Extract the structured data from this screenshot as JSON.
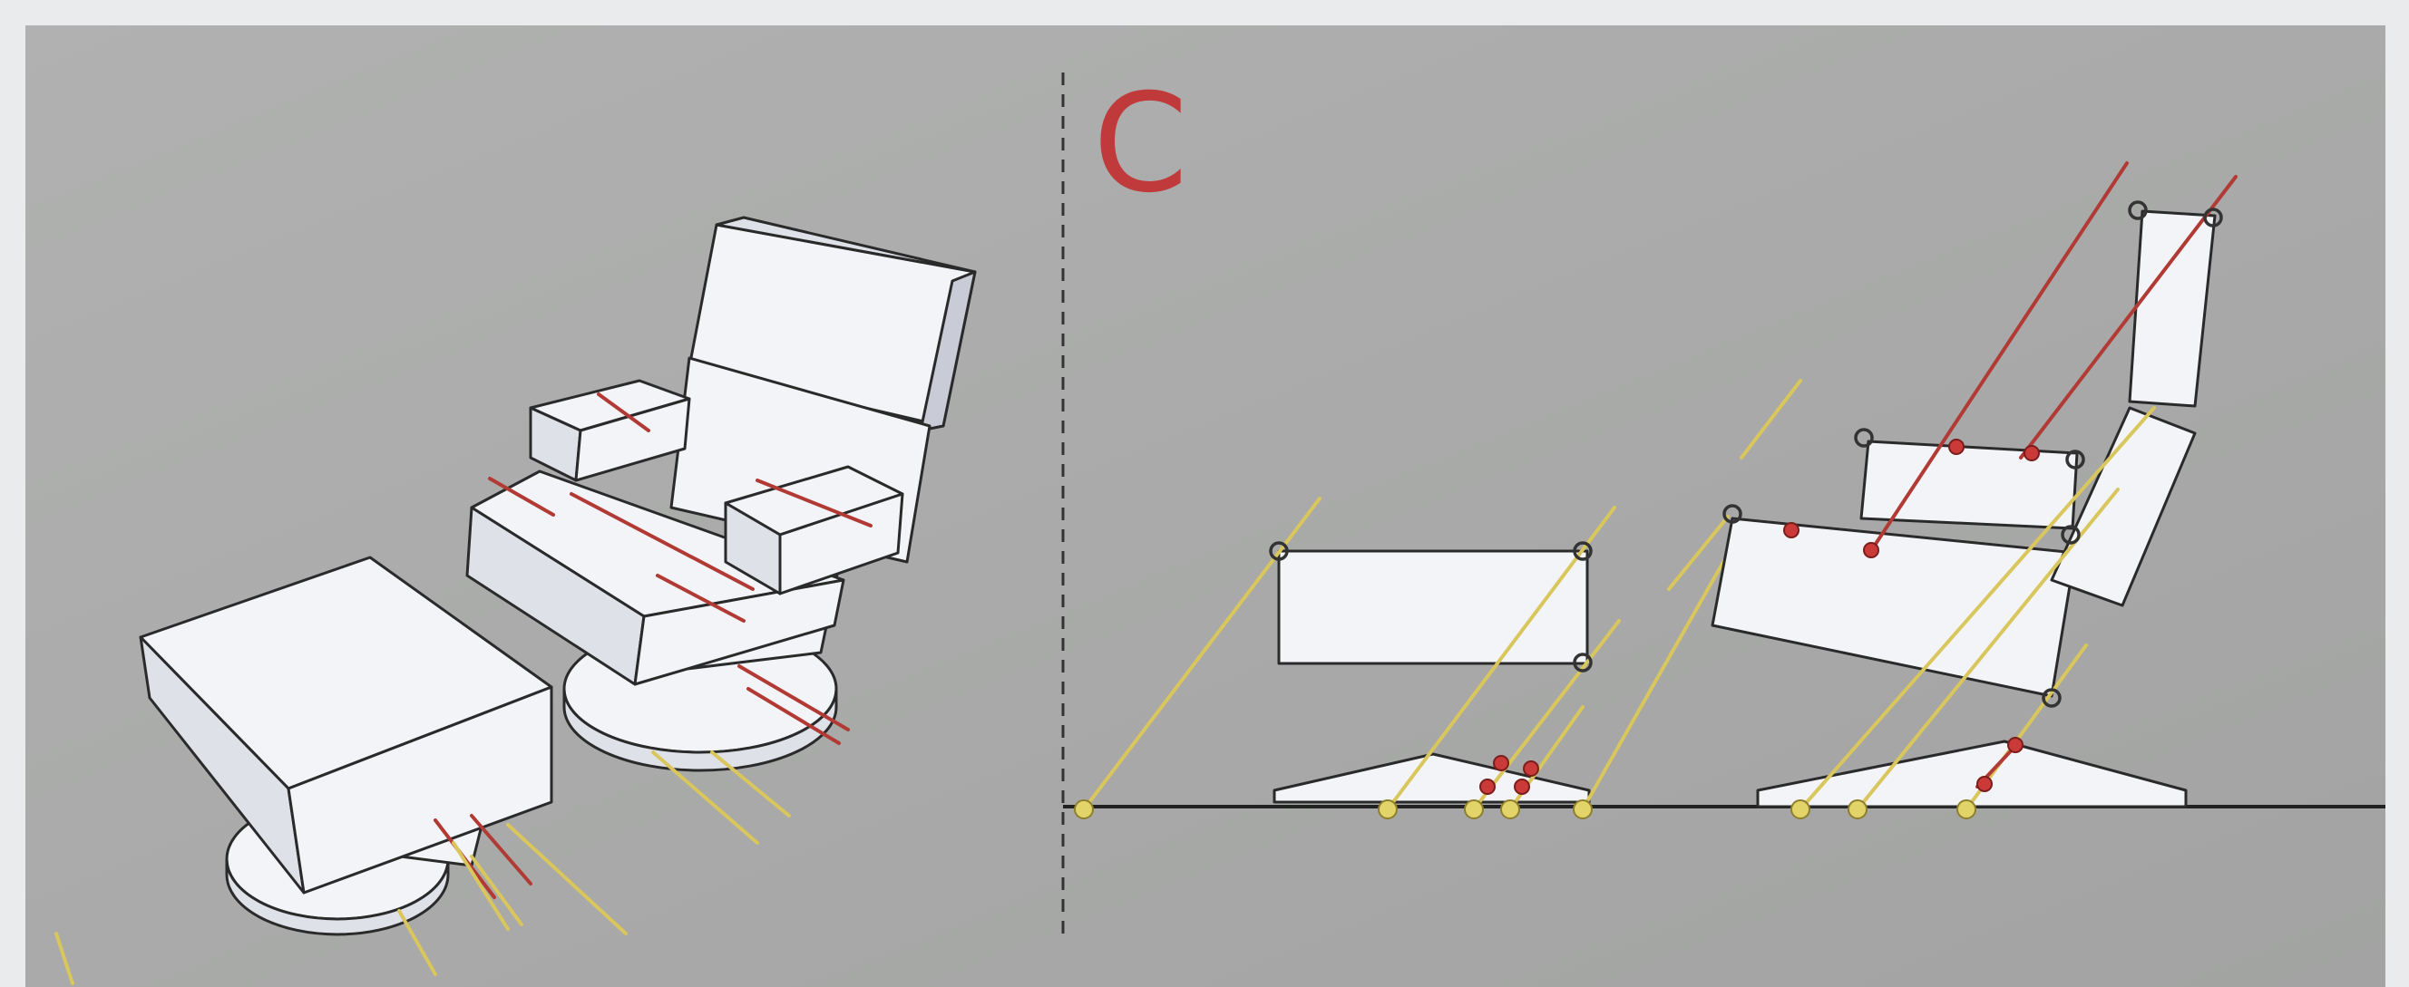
{
  "panel": {
    "label": "C",
    "label_color": "#c0393b"
  },
  "colors": {
    "background": "#a7a8a7",
    "page_margin": "#e9ebec",
    "object_fill": "#f3f4f8",
    "red_lines": "#b23a35",
    "yellow_lines": "#d9c65c"
  },
  "left_view": {
    "objects": [
      "ottoman",
      "chair"
    ]
  },
  "right_view": {
    "objects": [
      "ottoman-side-view",
      "chair-side-view"
    ]
  }
}
